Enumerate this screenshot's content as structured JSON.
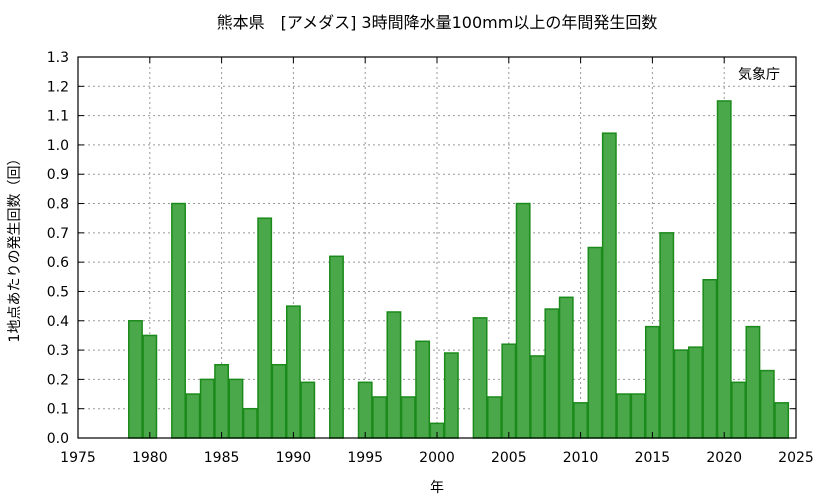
{
  "chart_data": {
    "type": "bar",
    "title": "熊本県　[アメダス] 3時間降水量100mm以上の年間発生回数",
    "xlabel": "年",
    "ylabel": "1地点あたりの発生回数（回）",
    "annotation": "気象庁",
    "xlim": [
      1975,
      2025
    ],
    "ylim": [
      0,
      1.3
    ],
    "x_ticks": [
      1975,
      1980,
      1985,
      1990,
      1995,
      2000,
      2005,
      2010,
      2015,
      2020,
      2025
    ],
    "y_ticks": [
      "0.0",
      "0.1",
      "0.2",
      "0.3",
      "0.4",
      "0.5",
      "0.6",
      "0.7",
      "0.8",
      "0.9",
      "1.0",
      "1.1",
      "1.2",
      "1.3"
    ],
    "grid": true,
    "bar_color": "#4aa84a",
    "bar_edge_color": "#1a8a1a",
    "x": [
      1976,
      1977,
      1978,
      1979,
      1980,
      1981,
      1982,
      1983,
      1984,
      1985,
      1986,
      1987,
      1988,
      1989,
      1990,
      1991,
      1992,
      1993,
      1994,
      1995,
      1996,
      1997,
      1998,
      1999,
      2000,
      2001,
      2002,
      2003,
      2004,
      2005,
      2006,
      2007,
      2008,
      2009,
      2010,
      2011,
      2012,
      2013,
      2014,
      2015,
      2016,
      2017,
      2018,
      2019,
      2020,
      2021,
      2022,
      2023,
      2024
    ],
    "values": [
      0,
      0,
      0,
      0.4,
      0.35,
      0,
      0.8,
      0.15,
      0.2,
      0.25,
      0.2,
      0.1,
      0.75,
      0.25,
      0.45,
      0.19,
      0,
      0.62,
      0,
      0.19,
      0.14,
      0.43,
      0.14,
      0.33,
      0.05,
      0.29,
      0,
      0.41,
      0.14,
      0.32,
      0.8,
      0.28,
      0.44,
      0.48,
      0.12,
      0.65,
      1.04,
      0.15,
      0.15,
      0.38,
      0.7,
      0.3,
      0.31,
      0.54,
      1.15,
      0.19,
      0.38,
      0.23,
      0.12
    ]
  }
}
